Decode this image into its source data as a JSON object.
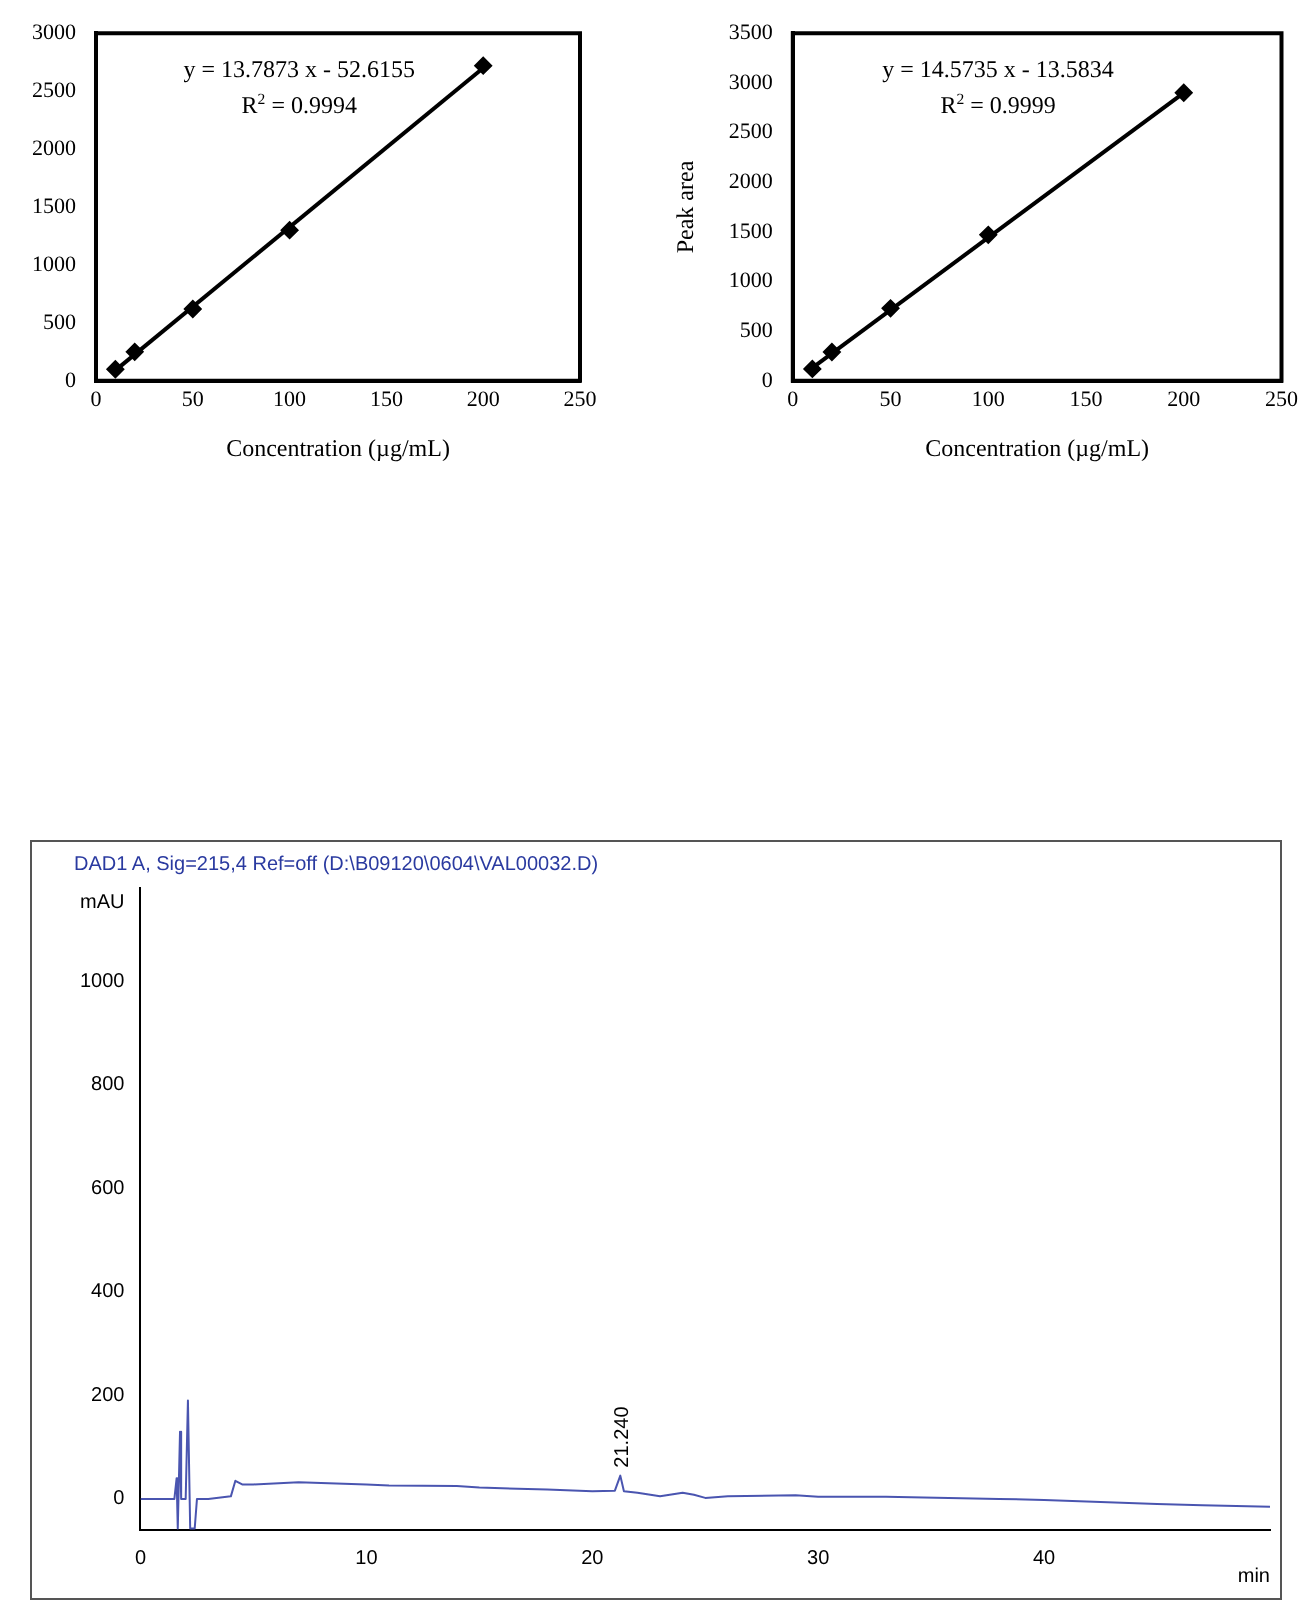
{
  "chart_data": [
    {
      "type": "scatter",
      "xlabel": "Concentration (µg/mL)",
      "xlim": [
        0,
        250
      ],
      "xticks": [
        0,
        50,
        100,
        150,
        200,
        250
      ],
      "ylim": [
        0,
        3000
      ],
      "yticks": [
        0,
        500,
        1000,
        1500,
        2000,
        2500,
        3000
      ],
      "annotations": [
        "y = 13.7873 x - 52.6155",
        "R$^{2}$ = 0.9994"
      ],
      "series": [
        {
          "type": "scatter",
          "marker": "diamond",
          "color": "#000000",
          "x": [
            10,
            20,
            50,
            100,
            200
          ],
          "values": [
            100,
            250,
            620,
            1300,
            2720
          ]
        },
        {
          "type": "line",
          "marker": "none",
          "color": "#000000",
          "x": [
            10,
            200
          ],
          "values": [
            90,
            2700
          ]
        }
      ]
    },
    {
      "type": "scatter",
      "xlabel": "Concentration (µg/mL)",
      "ylabel": "Peak area",
      "xlim": [
        0,
        250
      ],
      "xticks": [
        0,
        50,
        100,
        150,
        200,
        250
      ],
      "ylim": [
        0,
        3500
      ],
      "yticks": [
        0,
        500,
        1000,
        1500,
        2000,
        2500,
        3000,
        3500
      ],
      "annotations": [
        "y = 14.5735 x - 13.5834",
        "R$^{2}$ = 0.9999"
      ],
      "series": [
        {
          "type": "scatter",
          "marker": "diamond",
          "color": "#000000",
          "x": [
            10,
            20,
            50,
            100,
            200
          ],
          "values": [
            120,
            290,
            730,
            1470,
            2900
          ]
        },
        {
          "type": "line",
          "marker": "none",
          "color": "#000000",
          "x": [
            10,
            200
          ],
          "values": [
            130,
            2900
          ]
        }
      ]
    },
    {
      "type": "line",
      "title": "DAD1 A, Sig=215,4 Ref=off (D:\\B09120\\0604\\VAL00032.D)",
      "xlabel": "min",
      "ylabel": "mAU",
      "xlim": [
        0,
        50
      ],
      "xticks": [
        0,
        10,
        20,
        30,
        40
      ],
      "ylim": [
        -60,
        1180
      ],
      "yticks": [
        0,
        200,
        400,
        600,
        800,
        1000
      ],
      "annotations": [
        {
          "text": "21.240",
          "x": 21.24,
          "y": 45
        }
      ],
      "series": [
        {
          "color": "#4a55b0",
          "marker": "none",
          "x": [
            0,
            1.5,
            1.6,
            1.65,
            1.75,
            1.8,
            2.0,
            2.1,
            2.2,
            2.4,
            2.5,
            3.0,
            4.0,
            4.2,
            4.5,
            5,
            7,
            10,
            11,
            14,
            15,
            18,
            20,
            21,
            21.24,
            21.4,
            22,
            23,
            24,
            24.5,
            25,
            26,
            29,
            30,
            33,
            38,
            40,
            45,
            47,
            50
          ],
          "values": [
            0,
            0,
            40,
            -57,
            130,
            0,
            0,
            190,
            -57,
            -57,
            0,
            0,
            5,
            35,
            28,
            28,
            32,
            28,
            26,
            25,
            22,
            18,
            15,
            16,
            45,
            15,
            12,
            5,
            12,
            8,
            2,
            5,
            7,
            4,
            4,
            0,
            -2,
            -10,
            -12,
            -15
          ]
        }
      ]
    }
  ]
}
